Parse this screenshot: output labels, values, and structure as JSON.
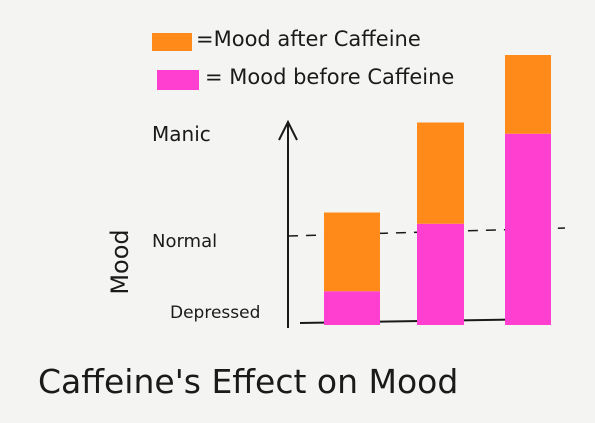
{
  "chart_data": {
    "type": "bar",
    "stacked": true,
    "title": "Caffeine's Effect on Mood",
    "ylabel": "Mood",
    "xlabel": "",
    "y_tick_labels": [
      "Depressed",
      "Normal",
      "Manic"
    ],
    "reference_line": "Normal",
    "categories": [
      "",
      "",
      ""
    ],
    "series": [
      {
        "name": "= Mood before Caffeine",
        "color": "#ff3fd0",
        "values": [
          0.15,
          0.45,
          0.85
        ]
      },
      {
        "name": "=Mood after Caffeine",
        "color": "#ff8a1a",
        "values": [
          0.35,
          0.45,
          0.35
        ]
      }
    ],
    "ylim": [
      0,
      1.2
    ],
    "grid": false,
    "legend": "top-center"
  },
  "icons": {
    "legend_swatch_shape": "marker-rectangle",
    "axis_arrow": "arrowhead-up"
  }
}
